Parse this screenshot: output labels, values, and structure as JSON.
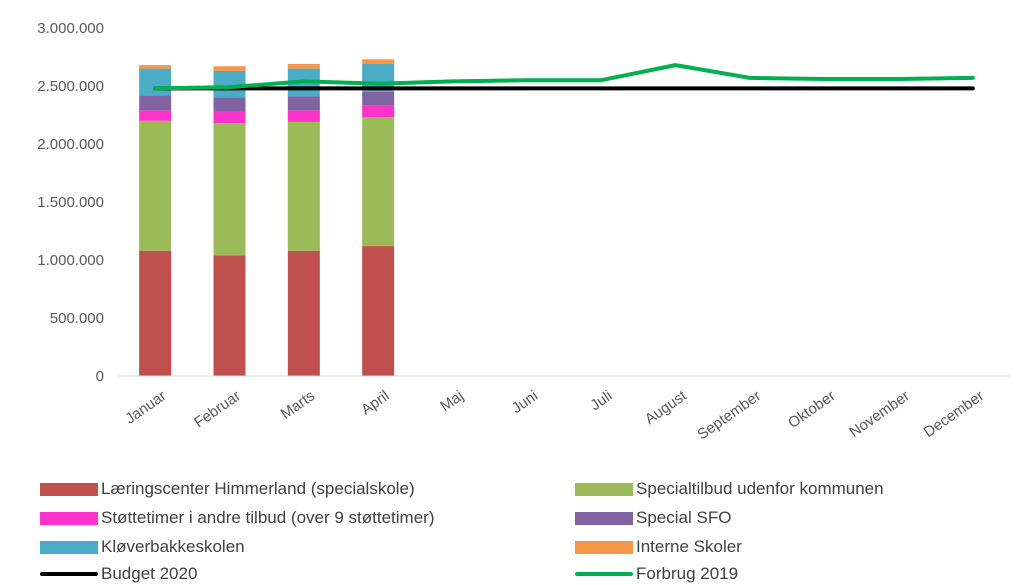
{
  "chart_data": {
    "type": "bar",
    "categories": [
      "Januar",
      "Februar",
      "Marts",
      "April",
      "Maj",
      "Juni",
      "Juli",
      "August",
      "September",
      "Oktober",
      "November",
      "December"
    ],
    "ylim": [
      0,
      3000000
    ],
    "y_ticks": [
      "0",
      "500.000",
      "1.000.000",
      "1.500.000",
      "2.000.000",
      "2.500.000",
      "3.000.000"
    ],
    "grid": false,
    "legend_position": "bottom",
    "stacked": true,
    "series": [
      {
        "name": "Læringscenter Himmerland (specialskole)",
        "color": "#C0504D",
        "kind": "bar",
        "values": [
          1080000,
          1040000,
          1080000,
          1120000,
          null,
          null,
          null,
          null,
          null,
          null,
          null,
          null
        ]
      },
      {
        "name": "Specialtilbud udenfor kommunen",
        "color": "#9BBB59",
        "kind": "bar",
        "values": [
          1120000,
          1140000,
          1110000,
          1110000,
          null,
          null,
          null,
          null,
          null,
          null,
          null,
          null
        ]
      },
      {
        "name": "Støttetimer i andre tilbud (over 9 støttetimer)",
        "color": "#FF33CC",
        "kind": "bar",
        "values": [
          90000,
          100000,
          100000,
          100000,
          null,
          null,
          null,
          null,
          null,
          null,
          null,
          null
        ]
      },
      {
        "name": "Special SFO",
        "color": "#8064A2",
        "kind": "bar",
        "values": [
          130000,
          120000,
          120000,
          120000,
          null,
          null,
          null,
          null,
          null,
          null,
          null,
          null
        ]
      },
      {
        "name": "Kløverbakkeskolen",
        "color": "#4BACC6",
        "kind": "bar",
        "values": [
          230000,
          230000,
          240000,
          240000,
          null,
          null,
          null,
          null,
          null,
          null,
          null,
          null
        ]
      },
      {
        "name": "Interne Skoler",
        "color": "#F79646",
        "kind": "bar",
        "values": [
          30000,
          40000,
          40000,
          40000,
          null,
          null,
          null,
          null,
          null,
          null,
          null,
          null
        ]
      },
      {
        "name": "Budget 2020",
        "color": "#000000",
        "kind": "line",
        "values": [
          2480000,
          2480000,
          2480000,
          2480000,
          2480000,
          2480000,
          2480000,
          2480000,
          2480000,
          2480000,
          2480000,
          2480000
        ]
      },
      {
        "name": "Forbrug 2019",
        "color": "#00B050",
        "kind": "line",
        "values": [
          2480000,
          2490000,
          2540000,
          2520000,
          2540000,
          2550000,
          2550000,
          2680000,
          2570000,
          2560000,
          2560000,
          2570000
        ]
      }
    ]
  }
}
